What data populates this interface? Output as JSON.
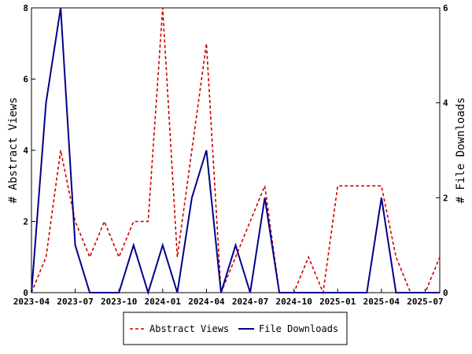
{
  "chart_data": {
    "type": "line",
    "title": "",
    "x": [
      "2023-04",
      "2023-05",
      "2023-06",
      "2023-07",
      "2023-08",
      "2023-09",
      "2023-10",
      "2023-11",
      "2023-12",
      "2024-01",
      "2024-02",
      "2024-03",
      "2024-04",
      "2024-05",
      "2024-06",
      "2024-07",
      "2024-08",
      "2024-09",
      "2024-10",
      "2024-11",
      "2024-12",
      "2025-01",
      "2025-02",
      "2025-03",
      "2025-04",
      "2025-05",
      "2025-06",
      "2025-07",
      "2025-08"
    ],
    "x_ticks": [
      "2023-04",
      "2023-07",
      "2023-10",
      "2024-01",
      "2024-04",
      "2024-07",
      "2024-10",
      "2025-01",
      "2025-04",
      "2025-07"
    ],
    "series": [
      {
        "name": "Abstract Views",
        "axis": "left",
        "color": "#cc0000",
        "dash": "dashed",
        "values": [
          0,
          1,
          4,
          2,
          1,
          2,
          1,
          2,
          2,
          8,
          1,
          4,
          7,
          0,
          1,
          2,
          3,
          0,
          0,
          1,
          0,
          3,
          3,
          3,
          3,
          1,
          0,
          0,
          1
        ]
      },
      {
        "name": "File Downloads",
        "axis": "right",
        "color": "#00008b",
        "dash": "solid",
        "values": [
          0,
          4,
          6,
          1,
          0,
          0,
          0,
          1,
          0,
          1,
          0,
          2,
          3,
          0,
          1,
          0,
          2,
          0,
          0,
          0,
          0,
          0,
          0,
          0,
          2,
          0,
          0,
          0,
          0
        ]
      }
    ],
    "y_left": {
      "label": "# Abstract Views",
      "min": 0,
      "max": 8,
      "ticks": [
        0,
        2,
        4,
        6,
        8
      ]
    },
    "y_right": {
      "label": "# File Downloads",
      "min": 0,
      "max": 6,
      "ticks": [
        0,
        2,
        4,
        6
      ]
    },
    "grid": false,
    "legend": "bottom"
  }
}
